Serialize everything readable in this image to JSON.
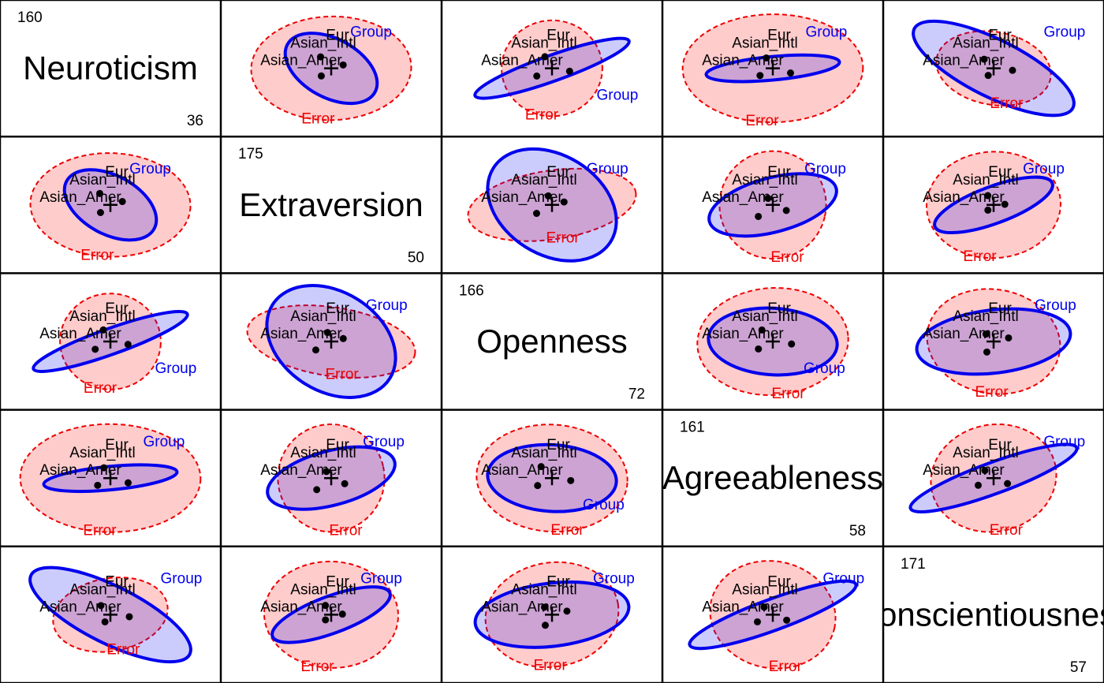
{
  "chart_data": {
    "type": "hypothesis-error-pairs-plot",
    "variables": [
      "Neuroticism",
      "Extraversion",
      "Openness",
      "Agreeableness",
      "Conscientiousness"
    ],
    "ranges": [
      {
        "min": 36,
        "max": 160
      },
      {
        "min": 50,
        "max": 175
      },
      {
        "min": 72,
        "max": 166
      },
      {
        "min": 58,
        "max": 161
      },
      {
        "min": 57,
        "max": 171
      }
    ],
    "groups": [
      "Asian_Amer",
      "Asian_Intl",
      "Eur"
    ],
    "error_label": "Error",
    "hypothesis_label": "Group",
    "colors": {
      "error_stroke": "#ee0000",
      "error_fill": "#ffcccc",
      "hypothesis_stroke": "#0000ee",
      "hypothesis_fill": "rgba(0,0,238,0.2)",
      "means": "#000000",
      "grid": "#000000"
    },
    "grid": false,
    "legend": "none"
  }
}
